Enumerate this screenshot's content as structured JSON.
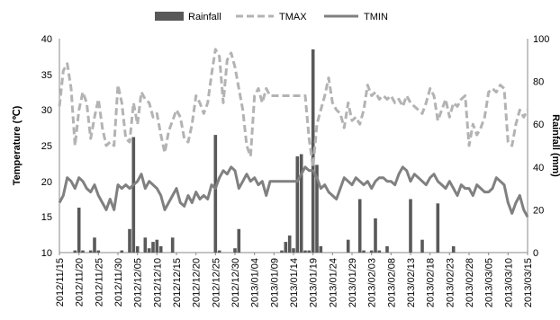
{
  "chart_data": {
    "type": "bar",
    "legend": {
      "placement": "top",
      "entries": [
        "Rainfall",
        "TMAX",
        "TMIN"
      ]
    },
    "ylabel_left": "Temperature (℃)",
    "ylabel_right": "Rainfall (mm)",
    "ylim_left": [
      10,
      40
    ],
    "ylim_right": [
      0,
      100
    ],
    "yticks_left": [
      "10",
      "15",
      "20",
      "25",
      "30",
      "35",
      "40"
    ],
    "yticks_right": [
      "0",
      "20",
      "40",
      "60",
      "80",
      "100"
    ],
    "x_start": "2012/11/15",
    "x_ticks": [
      "2012/11/15",
      "2012/11/20",
      "2012/11/25",
      "2012/11/30",
      "2012/12/05",
      "2012/12/10",
      "2012/12/15",
      "2012/12/20",
      "2012/12/25",
      "2012/12/30",
      "2013/01/04",
      "2013/01/09",
      "2013/01/14",
      "2013/01/19",
      "2013/01/24",
      "2013/01/29",
      "2013/02/03",
      "2013/02/08",
      "2013/02/13",
      "2013/02/18",
      "2013/02/23",
      "2013/02/28",
      "2013/03/05",
      "2013/03/10",
      "2013/03/15"
    ],
    "grid": false,
    "series": [
      {
        "name": "Rainfall",
        "type": "bar",
        "axis": "right",
        "color": "#595959",
        "points": [
          [
            "2012/11/19",
            1
          ],
          [
            "2012/11/20",
            21
          ],
          [
            "2012/11/21",
            1
          ],
          [
            "2012/11/23",
            1
          ],
          [
            "2012/11/24",
            7
          ],
          [
            "2012/11/25",
            1
          ],
          [
            "2012/12/01",
            1
          ],
          [
            "2012/12/03",
            11
          ],
          [
            "2012/12/04",
            54
          ],
          [
            "2012/12/05",
            3
          ],
          [
            "2012/12/07",
            7
          ],
          [
            "2012/12/08",
            2
          ],
          [
            "2012/12/09",
            5
          ],
          [
            "2012/12/10",
            6
          ],
          [
            "2012/12/11",
            3
          ],
          [
            "2012/12/14",
            7
          ],
          [
            "2012/12/25",
            55
          ],
          [
            "2012/12/26",
            1
          ],
          [
            "2012/12/30",
            2
          ],
          [
            "2012/12/31",
            11
          ],
          [
            "2013/01/11",
            1
          ],
          [
            "2013/01/12",
            5
          ],
          [
            "2013/01/13",
            8
          ],
          [
            "2013/01/14",
            2
          ],
          [
            "2013/01/15",
            45
          ],
          [
            "2013/01/16",
            46
          ],
          [
            "2013/01/17",
            1
          ],
          [
            "2013/01/18",
            1
          ],
          [
            "2013/01/19",
            95
          ],
          [
            "2013/01/20",
            41
          ],
          [
            "2013/01/21",
            3
          ],
          [
            "2013/01/28",
            6
          ],
          [
            "2013/01/31",
            25
          ],
          [
            "2013/02/01",
            1
          ],
          [
            "2013/02/03",
            1
          ],
          [
            "2013/02/04",
            16
          ],
          [
            "2013/02/05",
            1
          ],
          [
            "2013/02/07",
            3
          ],
          [
            "2013/02/13",
            25
          ],
          [
            "2013/02/16",
            6
          ],
          [
            "2013/02/20",
            23
          ],
          [
            "2013/02/24",
            3
          ]
        ]
      },
      {
        "name": "TMAX",
        "type": "line",
        "style": "dashed",
        "axis": "left",
        "color": "#b3b3b3",
        "points": [
          [
            "2012/11/15",
            30.5
          ],
          [
            "2012/11/16",
            35.5
          ],
          [
            "2012/11/17",
            36.5
          ],
          [
            "2012/11/18",
            33
          ],
          [
            "2012/11/19",
            25
          ],
          [
            "2012/11/20",
            30
          ],
          [
            "2012/11/21",
            32.5
          ],
          [
            "2012/11/22",
            31
          ],
          [
            "2012/11/23",
            26
          ],
          [
            "2012/11/24",
            29
          ],
          [
            "2012/11/25",
            31.5
          ],
          [
            "2012/11/26",
            27.5
          ],
          [
            "2012/11/27",
            25
          ],
          [
            "2012/11/28",
            25.5
          ],
          [
            "2012/11/29",
            25
          ],
          [
            "2012/11/30",
            33.5
          ],
          [
            "2012/12/01",
            31
          ],
          [
            "2012/12/02",
            26
          ],
          [
            "2012/12/03",
            25.5
          ],
          [
            "2012/12/04",
            31
          ],
          [
            "2012/12/05",
            28
          ],
          [
            "2012/12/06",
            32.5
          ],
          [
            "2012/12/07",
            31.5
          ],
          [
            "2012/12/08",
            31
          ],
          [
            "2012/12/09",
            29
          ],
          [
            "2012/12/10",
            29.5
          ],
          [
            "2012/12/11",
            26.5
          ],
          [
            "2012/12/12",
            24
          ],
          [
            "2012/12/13",
            27
          ],
          [
            "2012/12/14",
            28.5
          ],
          [
            "2012/12/15",
            30
          ],
          [
            "2012/12/16",
            29
          ],
          [
            "2012/12/17",
            26
          ],
          [
            "2012/12/18",
            25.5
          ],
          [
            "2012/12/19",
            28
          ],
          [
            "2012/12/20",
            32
          ],
          [
            "2012/12/21",
            31
          ],
          [
            "2012/12/22",
            29.5
          ],
          [
            "2012/12/23",
            31
          ],
          [
            "2012/12/24",
            35
          ],
          [
            "2012/12/25",
            38.5
          ],
          [
            "2012/12/26",
            37.5
          ],
          [
            "2012/12/27",
            31
          ],
          [
            "2012/12/28",
            37
          ],
          [
            "2012/12/29",
            38
          ],
          [
            "2012/12/30",
            36
          ],
          [
            "2012/12/31",
            33
          ],
          [
            "2013/01/01",
            30
          ],
          [
            "2013/01/02",
            25
          ],
          [
            "2013/01/03",
            23.5
          ],
          [
            "2013/01/04",
            32
          ],
          [
            "2013/01/05",
            33
          ],
          [
            "2013/01/06",
            31
          ],
          [
            "2013/01/07",
            33
          ],
          [
            "2013/01/08",
            32
          ],
          [
            "2013/01/17",
            32
          ],
          [
            "2013/01/18",
            26
          ],
          [
            "2013/01/19",
            22
          ],
          [
            "2013/01/20",
            28
          ],
          [
            "2013/01/21",
            30
          ],
          [
            "2013/01/22",
            32
          ],
          [
            "2013/01/23",
            34.5
          ],
          [
            "2013/01/24",
            31
          ],
          [
            "2013/01/25",
            30
          ],
          [
            "2013/01/26",
            29.5
          ],
          [
            "2013/01/27",
            27.5
          ],
          [
            "2013/01/28",
            31
          ],
          [
            "2013/01/29",
            28.5
          ],
          [
            "2013/01/30",
            29
          ],
          [
            "2013/01/31",
            28
          ],
          [
            "2013/02/01",
            30
          ],
          [
            "2013/02/02",
            33.5
          ],
          [
            "2013/02/03",
            32
          ],
          [
            "2013/02/04",
            32.5
          ],
          [
            "2013/02/05",
            31.5
          ],
          [
            "2013/02/06",
            32
          ],
          [
            "2013/02/07",
            31.5
          ],
          [
            "2013/02/08",
            32
          ],
          [
            "2013/02/09",
            31
          ],
          [
            "2013/02/10",
            31.5
          ],
          [
            "2013/02/11",
            30.5
          ],
          [
            "2013/02/12",
            32
          ],
          [
            "2013/02/13",
            31
          ],
          [
            "2013/02/14",
            30.5
          ],
          [
            "2013/02/15",
            30
          ],
          [
            "2013/02/16",
            29.5
          ],
          [
            "2013/02/17",
            31
          ],
          [
            "2013/02/18",
            33
          ],
          [
            "2013/02/19",
            32
          ],
          [
            "2013/02/20",
            28.5
          ],
          [
            "2013/02/21",
            30
          ],
          [
            "2013/02/22",
            31.5
          ],
          [
            "2013/02/23",
            29
          ],
          [
            "2013/02/24",
            31
          ],
          [
            "2013/02/25",
            30.5
          ],
          [
            "2013/02/26",
            31.5
          ],
          [
            "2013/02/27",
            32
          ],
          [
            "2013/02/28",
            25
          ],
          [
            "2013/03/01",
            28
          ],
          [
            "2013/03/02",
            26.5
          ],
          [
            "2013/03/03",
            27.5
          ],
          [
            "2013/03/04",
            29
          ],
          [
            "2013/03/05",
            32.5
          ],
          [
            "2013/03/06",
            33
          ],
          [
            "2013/03/07",
            32.5
          ],
          [
            "2013/03/08",
            33.5
          ],
          [
            "2013/03/09",
            33
          ],
          [
            "2013/03/10",
            25.5
          ],
          [
            "2013/03/11",
            25
          ],
          [
            "2013/03/12",
            28
          ],
          [
            "2013/03/13",
            30
          ],
          [
            "2013/03/14",
            29
          ],
          [
            "2013/03/15",
            30
          ]
        ]
      },
      {
        "name": "TMIN",
        "type": "line",
        "style": "solid",
        "axis": "left",
        "color": "#808080",
        "points": [
          [
            "2012/11/15",
            17
          ],
          [
            "2012/11/16",
            18
          ],
          [
            "2012/11/17",
            20.5
          ],
          [
            "2012/11/18",
            20
          ],
          [
            "2012/11/19",
            19
          ],
          [
            "2012/11/20",
            20.5
          ],
          [
            "2012/11/21",
            20
          ],
          [
            "2012/11/22",
            19
          ],
          [
            "2012/11/23",
            18.5
          ],
          [
            "2012/11/24",
            19.5
          ],
          [
            "2012/11/25",
            18
          ],
          [
            "2012/11/26",
            17
          ],
          [
            "2012/11/27",
            16
          ],
          [
            "2012/11/28",
            17.5
          ],
          [
            "2012/11/29",
            16
          ],
          [
            "2012/11/30",
            19.5
          ],
          [
            "2012/12/01",
            19
          ],
          [
            "2012/12/02",
            19.5
          ],
          [
            "2012/12/03",
            19
          ],
          [
            "2012/12/04",
            19.5
          ],
          [
            "2012/12/05",
            20
          ],
          [
            "2012/12/06",
            21
          ],
          [
            "2012/12/07",
            19
          ],
          [
            "2012/12/08",
            20
          ],
          [
            "2012/12/09",
            19.5
          ],
          [
            "2012/12/10",
            19
          ],
          [
            "2012/12/11",
            18
          ],
          [
            "2012/12/12",
            16
          ],
          [
            "2012/12/13",
            17
          ],
          [
            "2012/12/14",
            18
          ],
          [
            "2012/12/15",
            19
          ],
          [
            "2012/12/16",
            17
          ],
          [
            "2012/12/17",
            16.5
          ],
          [
            "2012/12/18",
            18
          ],
          [
            "2012/12/19",
            17
          ],
          [
            "2012/12/20",
            18.5
          ],
          [
            "2012/12/21",
            17.5
          ],
          [
            "2012/12/22",
            18
          ],
          [
            "2012/12/23",
            17.5
          ],
          [
            "2012/12/24",
            19.5
          ],
          [
            "2012/12/25",
            19
          ],
          [
            "2012/12/26",
            20.5
          ],
          [
            "2012/12/27",
            21.5
          ],
          [
            "2012/12/28",
            21
          ],
          [
            "2012/12/29",
            22
          ],
          [
            "2012/12/30",
            21.5
          ],
          [
            "2012/12/31",
            19
          ],
          [
            "2013/01/01",
            20
          ],
          [
            "2013/01/02",
            21
          ],
          [
            "2013/01/03",
            20
          ],
          [
            "2013/01/04",
            20.5
          ],
          [
            "2013/01/05",
            19.5
          ],
          [
            "2013/01/06",
            20
          ],
          [
            "2013/01/07",
            18
          ],
          [
            "2013/01/08",
            20
          ],
          [
            "2013/01/14",
            20
          ],
          [
            "2013/01/15",
            20
          ],
          [
            "2013/01/16",
            21
          ],
          [
            "2013/01/17",
            22
          ],
          [
            "2013/01/18",
            21.5
          ],
          [
            "2013/01/19",
            21.5
          ],
          [
            "2013/01/20",
            20.5
          ],
          [
            "2013/01/21",
            19
          ],
          [
            "2013/01/22",
            19.5
          ],
          [
            "2013/01/23",
            18.5
          ],
          [
            "2013/01/24",
            18
          ],
          [
            "2013/01/25",
            17.5
          ],
          [
            "2013/01/26",
            19
          ],
          [
            "2013/01/27",
            20.5
          ],
          [
            "2013/01/28",
            20
          ],
          [
            "2013/01/29",
            19.5
          ],
          [
            "2013/01/30",
            20.5
          ],
          [
            "2013/01/31",
            20
          ],
          [
            "2013/02/01",
            19.5
          ],
          [
            "2013/02/02",
            20
          ],
          [
            "2013/02/03",
            19
          ],
          [
            "2013/02/04",
            20
          ],
          [
            "2013/02/05",
            20.5
          ],
          [
            "2013/02/06",
            20.5
          ],
          [
            "2013/02/07",
            20
          ],
          [
            "2013/02/08",
            20
          ],
          [
            "2013/02/09",
            19.5
          ],
          [
            "2013/02/10",
            21
          ],
          [
            "2013/02/11",
            22
          ],
          [
            "2013/02/12",
            21.5
          ],
          [
            "2013/02/13",
            20
          ],
          [
            "2013/02/14",
            21
          ],
          [
            "2013/02/15",
            20.5
          ],
          [
            "2013/02/16",
            20
          ],
          [
            "2013/02/17",
            19.5
          ],
          [
            "2013/02/18",
            20.5
          ],
          [
            "2013/02/19",
            21
          ],
          [
            "2013/02/20",
            20
          ],
          [
            "2013/02/21",
            19.5
          ],
          [
            "2013/02/22",
            19
          ],
          [
            "2013/02/23",
            20
          ],
          [
            "2013/02/24",
            19
          ],
          [
            "2013/02/25",
            18
          ],
          [
            "2013/02/26",
            19.5
          ],
          [
            "2013/02/27",
            19
          ],
          [
            "2013/02/28",
            19
          ],
          [
            "2013/03/01",
            18
          ],
          [
            "2013/03/02",
            19.5
          ],
          [
            "2013/03/03",
            19
          ],
          [
            "2013/03/04",
            18.5
          ],
          [
            "2013/03/05",
            18.5
          ],
          [
            "2013/03/06",
            19
          ],
          [
            "2013/03/07",
            20.5
          ],
          [
            "2013/03/08",
            20
          ],
          [
            "2013/03/09",
            19.5
          ],
          [
            "2013/03/10",
            17
          ],
          [
            "2013/03/11",
            15.5
          ],
          [
            "2013/03/12",
            17
          ],
          [
            "2013/03/13",
            18
          ],
          [
            "2013/03/14",
            16
          ],
          [
            "2013/03/15",
            15
          ]
        ]
      }
    ]
  }
}
